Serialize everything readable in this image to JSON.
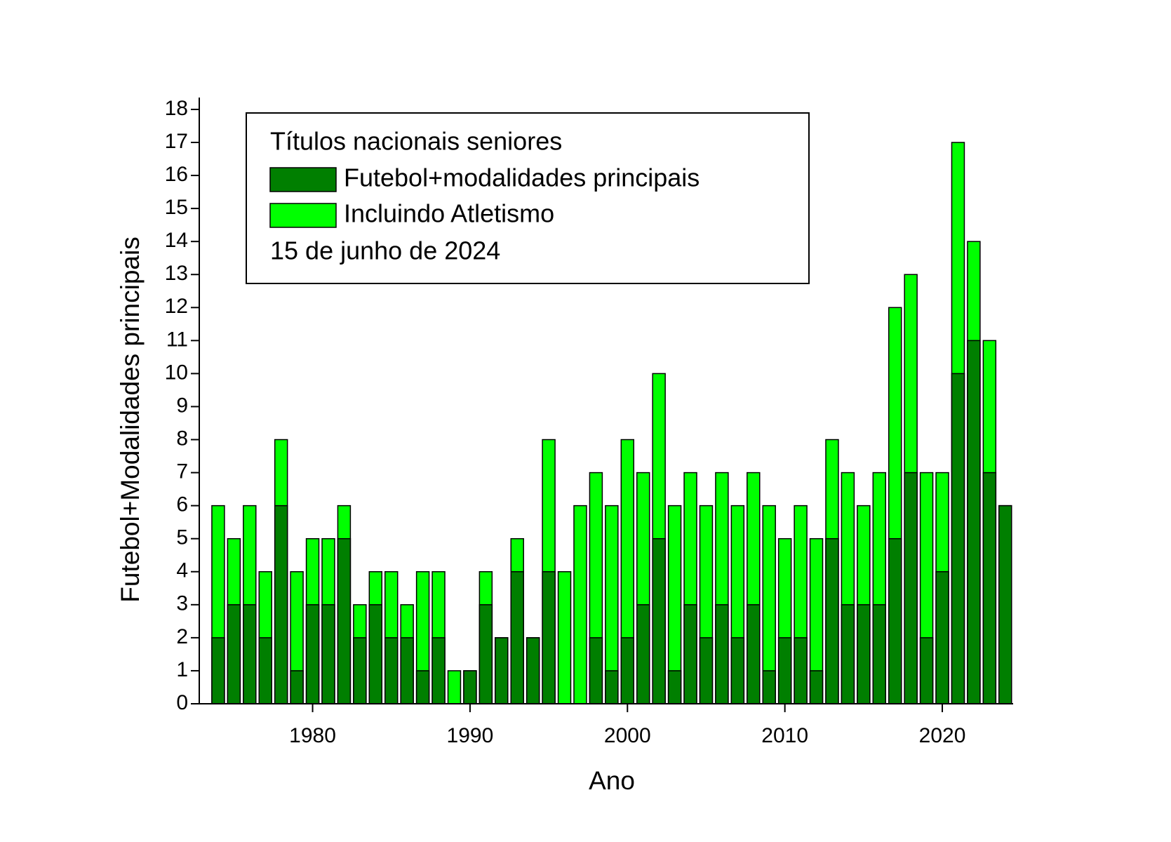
{
  "chart_data": {
    "type": "bar",
    "legend_title": "Títulos nacionais seniores",
    "note": "15 de junho de 2024",
    "xlabel": "Ano",
    "ylabel": "Futebol+Modalidades principais",
    "x": [
      1974,
      1975,
      1976,
      1977,
      1978,
      1979,
      1980,
      1981,
      1982,
      1983,
      1984,
      1985,
      1986,
      1987,
      1988,
      1989,
      1990,
      1991,
      1992,
      1993,
      1994,
      1995,
      1996,
      1997,
      1998,
      1999,
      2000,
      2001,
      2002,
      2003,
      2004,
      2005,
      2006,
      2007,
      2008,
      2009,
      2010,
      2011,
      2012,
      2013,
      2014,
      2015,
      2016,
      2017,
      2018,
      2019,
      2020,
      2021,
      2022,
      2023,
      2024
    ],
    "series": [
      {
        "name": "Incluindo Atletismo",
        "color": "#00ff00",
        "values": [
          6,
          5,
          6,
          4,
          8,
          4,
          5,
          5,
          6,
          3,
          4,
          4,
          3,
          4,
          4,
          1,
          1,
          4,
          2,
          5,
          2,
          8,
          4,
          6,
          7,
          6,
          8,
          7,
          10,
          6,
          7,
          6,
          7,
          6,
          7,
          6,
          5,
          6,
          5,
          8,
          7,
          6,
          7,
          12,
          13,
          7,
          7,
          17,
          14,
          11,
          6
        ]
      },
      {
        "name": "Futebol+modalidades principais",
        "color": "#007f00",
        "values": [
          2,
          3,
          3,
          2,
          6,
          1,
          3,
          3,
          5,
          2,
          3,
          2,
          2,
          1,
          2,
          0,
          1,
          3,
          2,
          4,
          2,
          4,
          0,
          0,
          2,
          1,
          2,
          3,
          5,
          1,
          3,
          2,
          3,
          2,
          3,
          1,
          2,
          2,
          1,
          5,
          3,
          3,
          3,
          5,
          7,
          2,
          4,
          10,
          11,
          7,
          6
        ]
      }
    ],
    "overlap": true,
    "xlim": [
      1972.8,
      2024.5
    ],
    "xticks": [
      1980,
      1990,
      2000,
      2010,
      2020
    ],
    "ylim": [
      0,
      18.36
    ],
    "yticks": [
      0,
      1,
      2,
      3,
      4,
      5,
      6,
      7,
      8,
      9,
      10,
      11,
      12,
      13,
      14,
      15,
      16,
      17,
      18
    ]
  }
}
